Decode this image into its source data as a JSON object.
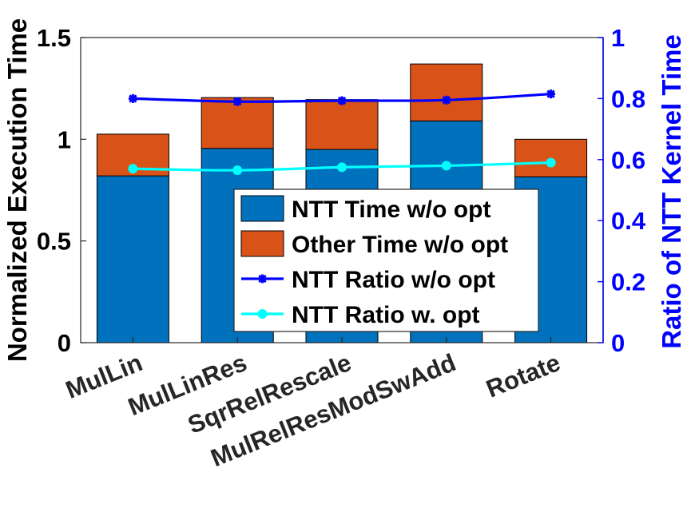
{
  "chart_data": {
    "type": "bar",
    "categories": [
      "MulLin",
      "MulLinRes",
      "SqrRelRescale",
      "MulRelResModSwAdd",
      "Rotate"
    ],
    "left_axis": {
      "label": "Normalized Execution Time",
      "ylim": [
        0,
        1.5
      ],
      "ticks": [
        "0",
        "0.5",
        "1",
        "1.5"
      ],
      "tick_values": [
        0,
        0.5,
        1,
        1.5
      ]
    },
    "right_axis": {
      "label": "Ratio of NTT Kernel Time",
      "ylim": [
        0,
        1
      ],
      "ticks": [
        "0",
        "0.2",
        "0.4",
        "0.6",
        "0.8",
        "1"
      ],
      "tick_values": [
        0,
        0.2,
        0.4,
        0.6,
        0.8,
        1
      ],
      "color": "#0000ff"
    },
    "stacked_bars": [
      {
        "name": "NTT Time w/o opt",
        "color": "#0072bd",
        "values": [
          0.82,
          0.955,
          0.95,
          1.09,
          0.815
        ]
      },
      {
        "name": "Other Time w/o opt",
        "color": "#d95319",
        "values": [
          0.205,
          0.25,
          0.245,
          0.28,
          0.185
        ]
      }
    ],
    "lines": [
      {
        "name": "NTT Ratio w/o opt",
        "color": "#0000ff",
        "marker": "asterisk",
        "axis": "right",
        "values": [
          0.8,
          0.79,
          0.793,
          0.795,
          0.815
        ]
      },
      {
        "name": "NTT Ratio w. opt",
        "color": "#00ffff",
        "marker": "circle",
        "axis": "right",
        "values": [
          0.57,
          0.565,
          0.575,
          0.58,
          0.59
        ]
      }
    ],
    "legend_placement": "bottom-right"
  }
}
